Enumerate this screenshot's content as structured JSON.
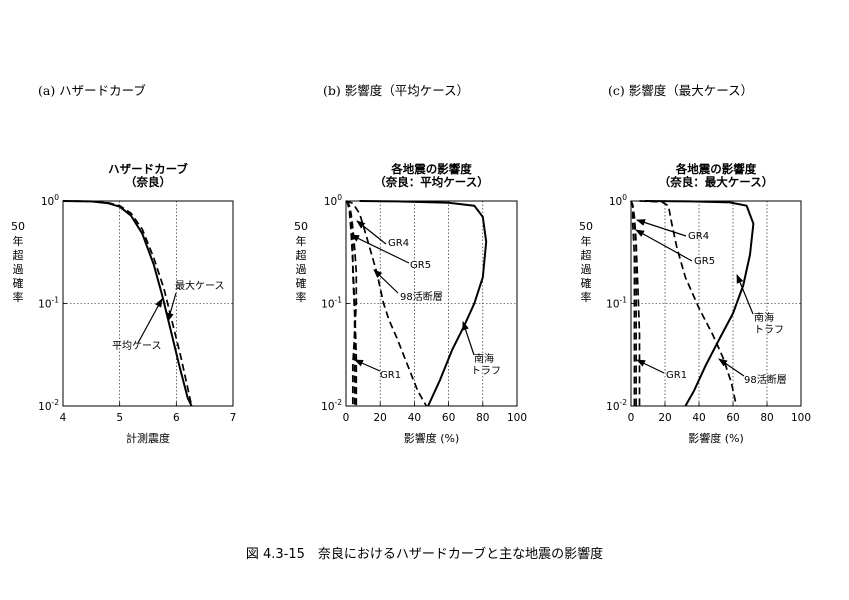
{
  "panels": {
    "a": {
      "label": "(a)  ハザードカーブ"
    },
    "b": {
      "label": "(b)  影響度（平均ケース）"
    },
    "c": {
      "label": "(c)  影響度（最大ケース）"
    }
  },
  "caption": "図 4.3-15　奈良におけるハザードカーブと主な地震の影響度",
  "chart_data": [
    {
      "type": "line",
      "title": "ハザードカーブ",
      "subtitle": "（奈良）",
      "xlabel": "計測震度",
      "ylabel": "50年超過確率",
      "xlim": [
        4,
        7
      ],
      "ylim": [
        0.01,
        1
      ],
      "yscale": "log",
      "grid": true,
      "x_ticks": [
        "4",
        "5",
        "6",
        "7"
      ],
      "series": [
        {
          "name": "平均ケース",
          "style": "solid",
          "x": [
            4.0,
            4.5,
            4.8,
            5.0,
            5.2,
            5.4,
            5.6,
            5.75,
            5.9,
            6.05,
            6.2,
            6.27
          ],
          "y": [
            1.0,
            0.99,
            0.95,
            0.88,
            0.72,
            0.48,
            0.24,
            0.12,
            0.055,
            0.025,
            0.012,
            0.01
          ]
        },
        {
          "name": "最大ケース",
          "style": "dashed",
          "x": [
            4.0,
            4.5,
            4.8,
            5.0,
            5.2,
            5.4,
            5.6,
            5.78,
            5.93,
            6.08,
            6.2,
            6.27
          ],
          "y": [
            1.0,
            0.99,
            0.96,
            0.9,
            0.76,
            0.53,
            0.28,
            0.14,
            0.065,
            0.03,
            0.015,
            0.01
          ]
        }
      ],
      "annotations": [
        "最大ケース",
        "平均ケース"
      ]
    },
    {
      "type": "line",
      "title": "各地震の影響度",
      "subtitle": "（奈良：平均ケース）",
      "xlabel": "影響度 (%)",
      "ylabel": "50年超過確率",
      "xlim": [
        0,
        100
      ],
      "ylim": [
        0.01,
        1
      ],
      "yscale": "log",
      "grid": true,
      "x_ticks": [
        "0",
        "20",
        "40",
        "60",
        "80",
        "100"
      ],
      "series": [
        {
          "name": "南海トラフ",
          "style": "solid",
          "x": [
            8,
            30,
            60,
            75,
            80,
            82,
            80,
            75,
            69,
            62,
            55,
            48
          ],
          "y": [
            1.0,
            0.99,
            0.96,
            0.9,
            0.7,
            0.4,
            0.18,
            0.1,
            0.06,
            0.035,
            0.018,
            0.01
          ]
        },
        {
          "name": "98活断層",
          "style": "dashed",
          "x": [
            0,
            4,
            8,
            12,
            18,
            22,
            25,
            30,
            36,
            42,
            47
          ],
          "y": [
            1.0,
            0.95,
            0.75,
            0.45,
            0.2,
            0.1,
            0.07,
            0.045,
            0.025,
            0.014,
            0.01
          ]
        },
        {
          "name": "GR4",
          "style": "dashed",
          "x": [
            0,
            1,
            2,
            3,
            4,
            5,
            6,
            6,
            5,
            4,
            4,
            4
          ],
          "y": [
            1.0,
            0.98,
            0.9,
            0.75,
            0.55,
            0.35,
            0.2,
            0.1,
            0.05,
            0.025,
            0.015,
            0.01
          ]
        },
        {
          "name": "GR5",
          "style": "dashed",
          "x": [
            0,
            1,
            2,
            3,
            4,
            4,
            5,
            5,
            5
          ],
          "y": [
            1.0,
            0.97,
            0.88,
            0.7,
            0.45,
            0.2,
            0.08,
            0.03,
            0.01
          ]
        },
        {
          "name": "GR1",
          "style": "dashed",
          "x": [
            0,
            1,
            2,
            3,
            4,
            5,
            6,
            6
          ],
          "y": [
            1.0,
            0.95,
            0.8,
            0.5,
            0.25,
            0.1,
            0.03,
            0.01
          ]
        }
      ],
      "annotations": [
        "GR4",
        "GR5",
        "98活断層",
        "GR1",
        "南海",
        "トラフ"
      ]
    },
    {
      "type": "line",
      "title": "各地震の影響度",
      "subtitle": "（奈良：最大ケース）",
      "xlabel": "影響度 (%)",
      "ylabel": "50年超過確率",
      "xlim": [
        0,
        100
      ],
      "ylim": [
        0.01,
        1
      ],
      "yscale": "log",
      "grid": true,
      "x_ticks": [
        "0",
        "20",
        "40",
        "60",
        "80",
        "100"
      ],
      "series": [
        {
          "name": "南海トラフ",
          "style": "solid",
          "x": [
            8,
            35,
            58,
            68,
            72,
            70,
            66,
            60,
            52,
            44,
            37,
            32
          ],
          "y": [
            1.0,
            0.99,
            0.97,
            0.9,
            0.6,
            0.3,
            0.15,
            0.08,
            0.045,
            0.025,
            0.014,
            0.01
          ]
        },
        {
          "name": "98活断層",
          "style": "dashed",
          "x": [
            5,
            18,
            22,
            24,
            27,
            32,
            40,
            48,
            54,
            59,
            62
          ],
          "y": [
            1.0,
            0.98,
            0.9,
            0.6,
            0.35,
            0.18,
            0.09,
            0.05,
            0.03,
            0.017,
            0.01
          ]
        },
        {
          "name": "GR4",
          "style": "dashed",
          "x": [
            0,
            1,
            2,
            3,
            3,
            3,
            3,
            3,
            3,
            3
          ],
          "y": [
            1.0,
            0.9,
            0.6,
            0.35,
            0.18,
            0.08,
            0.04,
            0.02,
            0.014,
            0.01
          ]
        },
        {
          "name": "GR5",
          "style": "dashed",
          "x": [
            0,
            1,
            1,
            2,
            2,
            2,
            2,
            2
          ],
          "y": [
            1.0,
            0.9,
            0.6,
            0.3,
            0.1,
            0.04,
            0.02,
            0.01
          ]
        },
        {
          "name": "GR1",
          "style": "dashed",
          "x": [
            0,
            1,
            2,
            3,
            4,
            5,
            5,
            5
          ],
          "y": [
            1.0,
            0.92,
            0.7,
            0.4,
            0.15,
            0.05,
            0.02,
            0.01
          ]
        }
      ],
      "annotations": [
        "GR4",
        "GR5",
        "GR1",
        "98活断層",
        "南海",
        "トラフ"
      ]
    }
  ]
}
